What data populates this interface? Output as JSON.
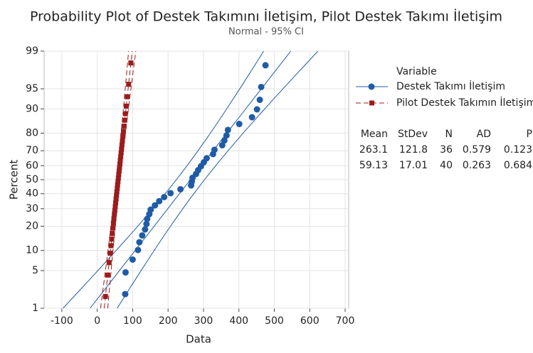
{
  "chart_data": {
    "type": "probability",
    "title": "Probability Plot of Destek Takımını İletişim, Pilot Destek Takımı İletişim",
    "subtitle": "Normal - 95% CI",
    "x_label": "Data",
    "y_label": "Percent",
    "xlim": [
      -150,
      710
    ],
    "xticks": [
      -100,
      0,
      100,
      200,
      300,
      400,
      500,
      600,
      700
    ],
    "ylim": [
      1,
      99
    ],
    "yticks": [
      1,
      5,
      10,
      20,
      30,
      40,
      50,
      60,
      70,
      80,
      90,
      95,
      99
    ],
    "grid": true,
    "legend_title": "Variable",
    "series": [
      {
        "name": "Destek Takımı İletişim",
        "color": "#1f5ba6",
        "marker": "circle",
        "line_style": "solid",
        "x": [
          79,
          80,
          100,
          115,
          119,
          127,
          135,
          139,
          141,
          147,
          151,
          163,
          175,
          189,
          207,
          235,
          265,
          267,
          269,
          279,
          285,
          293,
          301,
          309,
          327,
          331,
          353,
          359,
          365,
          369,
          401,
          437,
          451,
          459,
          463,
          475
        ],
        "values": [
          1.92,
          4.67,
          7.42,
          10.16,
          12.91,
          15.66,
          18.41,
          21.15,
          23.9,
          26.65,
          29.4,
          32.14,
          34.89,
          37.64,
          40.38,
          43.13,
          45.88,
          48.63,
          51.37,
          54.12,
          56.87,
          59.62,
          62.36,
          65.11,
          67.86,
          70.6,
          73.35,
          76.1,
          78.85,
          81.59,
          84.34,
          87.09,
          89.84,
          92.58,
          95.33,
          98.08
        ]
      },
      {
        "name": "Pilot Destek Takımın İletişim",
        "color": "#9b1c1c",
        "marker": "square",
        "line_style": "dashed",
        "x": [
          23.2,
          29.7,
          33.6,
          36.5,
          38.9,
          40.8,
          42.6,
          44.2,
          45.7,
          47.1,
          48.4,
          49.7,
          50.9,
          52.1,
          53.2,
          54.3,
          55.4,
          56.5,
          57.5,
          58.6,
          59.7,
          60.7,
          61.8,
          62.9,
          64.0,
          65.0,
          66.2,
          67.4,
          68.6,
          69.8,
          71.1,
          72.5,
          74.0,
          75.6,
          77.4,
          79.4,
          81.8,
          84.6,
          88.6,
          95.0
        ],
        "values": [
          1.73,
          4.21,
          6.68,
          9.16,
          11.63,
          14.11,
          16.58,
          19.06,
          21.53,
          24.01,
          26.49,
          28.96,
          31.44,
          33.91,
          36.39,
          38.86,
          41.34,
          43.81,
          46.29,
          48.76,
          51.24,
          53.71,
          56.19,
          58.66,
          61.14,
          63.61,
          66.09,
          68.56,
          71.04,
          73.51,
          75.99,
          78.47,
          80.94,
          83.42,
          85.89,
          88.37,
          90.84,
          93.32,
          95.79,
          98.27
        ]
      }
    ],
    "stats": {
      "columns": [
        "Mean",
        "StDev",
        "N",
        "AD",
        "P"
      ],
      "rows": [
        [
          263.1,
          121.8,
          36,
          0.579,
          0.123
        ],
        [
          59.13,
          17.01,
          40,
          0.263,
          0.684
        ]
      ]
    }
  }
}
